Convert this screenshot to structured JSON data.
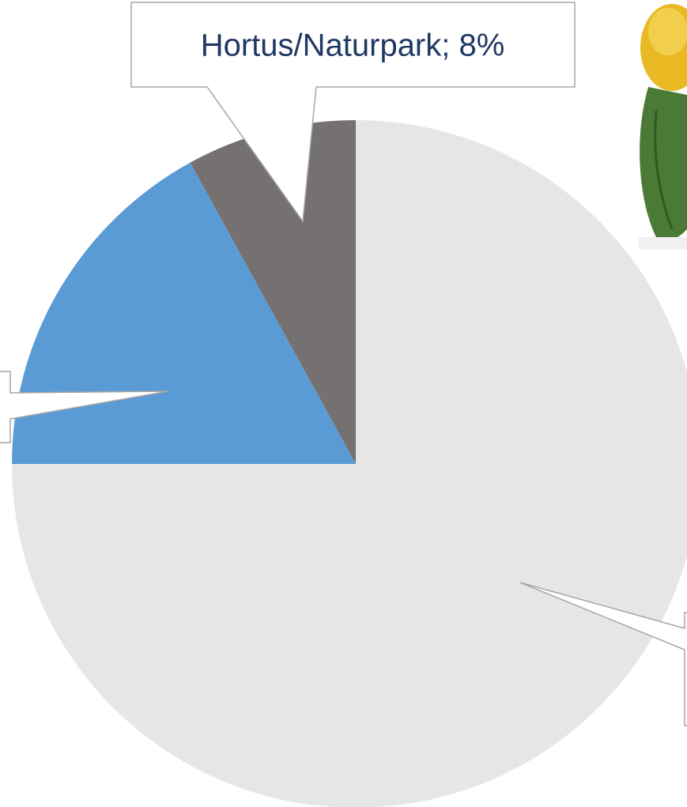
{
  "chart_data": {
    "type": "pie",
    "values": [
      8,
      17,
      75
    ],
    "value_labels": [
      "Hortus/Naturpark; 8%",
      null,
      null
    ],
    "colors": [
      "#767171",
      "#5b9bd5",
      "#e7e6e6"
    ],
    "start_angle": 0,
    "direction": "counterclockwise"
  }
}
